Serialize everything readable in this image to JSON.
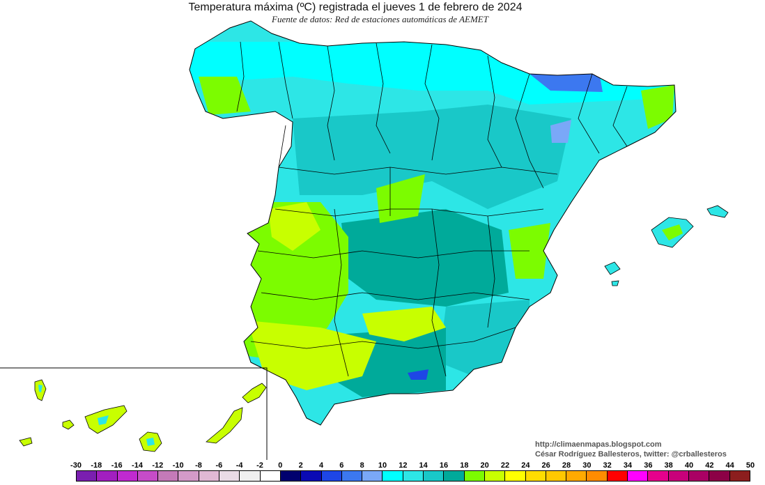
{
  "header": {
    "title": "Temperatura máxima (ºC) registrada el jueves 1 de febrero de 2024",
    "subtitle": "Fuente de datos: Red de estaciones automáticas de AEMET"
  },
  "credits": {
    "line1": "http://climaenmapas.blogspot.com",
    "line2": "César Rodríguez Ballesteros, twitter: @crballesteros"
  },
  "legend": {
    "labels": [
      "-30",
      "-18",
      "-16",
      "-14",
      "-12",
      "-10",
      "-8",
      "-6",
      "-4",
      "-2",
      "0",
      "2",
      "4",
      "6",
      "8",
      "10",
      "12",
      "14",
      "16",
      "18",
      "20",
      "22",
      "24",
      "26",
      "28",
      "30",
      "32",
      "34",
      "36",
      "38",
      "40",
      "42",
      "44",
      "50"
    ],
    "colors": [
      "#7a1fb0",
      "#a21fc0",
      "#c02ad0",
      "#c64cc8",
      "#c47ab8",
      "#d39ac8",
      "#e0b8d4",
      "#eadbe6",
      "#f0f0f0",
      "#ffffff",
      "#00006e",
      "#0a0ab4",
      "#1e46e6",
      "#3c78f0",
      "#7aa8f8",
      "#00ffff",
      "#2de6e6",
      "#19c8c8",
      "#00aa9a",
      "#7cfc00",
      "#c8ff00",
      "#ffff00",
      "#ffdc00",
      "#ffc800",
      "#ffaa00",
      "#ff8c00",
      "#ff0000",
      "#ff00ff",
      "#e6008c",
      "#c8007a",
      "#aa0064",
      "#8c0046",
      "#8c1e1e"
    ]
  },
  "map_colors": {
    "sea": "#ffffff",
    "temp_10_12": "#00ffff",
    "temp_12_14": "#2de6e6",
    "temp_14_16": "#19c8c8",
    "temp_16_18": "#00aa9a",
    "temp_18_20": "#7cfc00",
    "temp_20_22": "#c8ff00",
    "temp_4_6": "#1e46e6",
    "temp_6_8": "#3c78f0",
    "boundaries": "#000000"
  }
}
